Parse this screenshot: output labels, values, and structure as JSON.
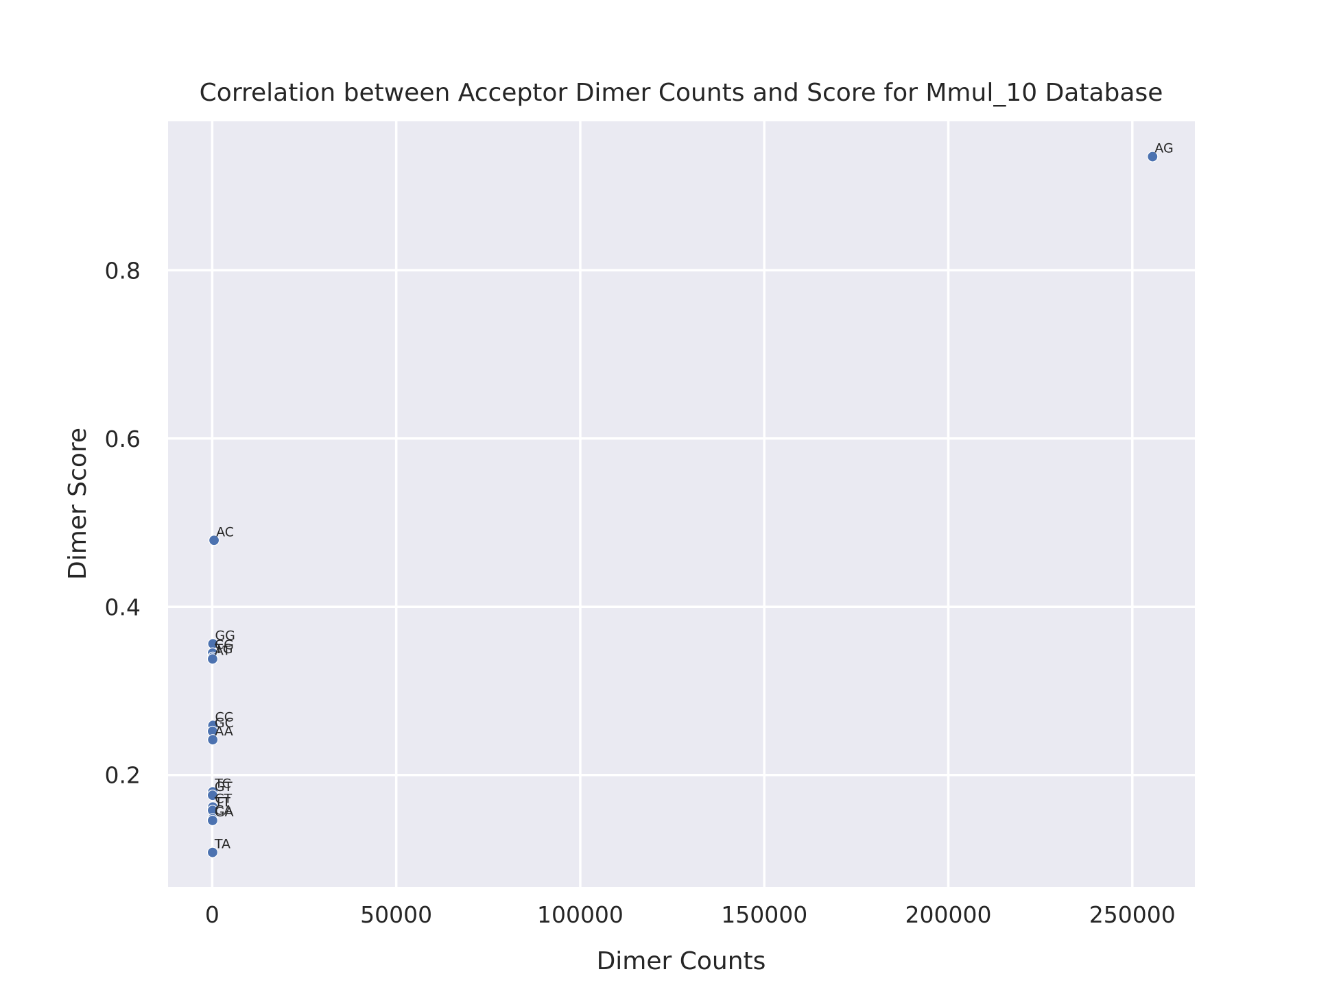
{
  "chart_data": {
    "type": "scatter",
    "title": "Correlation between Acceptor Dimer Counts and Score for Mmul_10 Database",
    "xlabel": "Dimer Counts",
    "ylabel": "Dimer Score",
    "xlim": [
      -12000,
      267000
    ],
    "ylim": [
      0.067,
      0.977
    ],
    "xticks": [
      0,
      50000,
      100000,
      150000,
      200000,
      250000
    ],
    "xtick_labels": [
      "0",
      "50000",
      "100000",
      "150000",
      "200000",
      "250000"
    ],
    "yticks": [
      0.2,
      0.4,
      0.6,
      0.8
    ],
    "ytick_labels": [
      "0.2",
      "0.4",
      "0.6",
      "0.8"
    ],
    "grid": true,
    "point_color": "#4c72b0",
    "background_color": "#eaeaf2",
    "points": [
      {
        "label": "AG",
        "x": 255500,
        "y": 0.935
      },
      {
        "label": "AC",
        "x": 500,
        "y": 0.479
      },
      {
        "label": "GG",
        "x": 200,
        "y": 0.356
      },
      {
        "label": "CG",
        "x": 100,
        "y": 0.345
      },
      {
        "label": "TG",
        "x": 150,
        "y": 0.34
      },
      {
        "label": "AT",
        "x": 100,
        "y": 0.338
      },
      {
        "label": "CC",
        "x": 200,
        "y": 0.259
      },
      {
        "label": "GC",
        "x": 100,
        "y": 0.252
      },
      {
        "label": "AA",
        "x": 150,
        "y": 0.242
      },
      {
        "label": "TC",
        "x": 150,
        "y": 0.18
      },
      {
        "label": "GT",
        "x": 100,
        "y": 0.176
      },
      {
        "label": "CT",
        "x": 150,
        "y": 0.162
      },
      {
        "label": "TT",
        "x": 100,
        "y": 0.158
      },
      {
        "label": "CA",
        "x": 120,
        "y": 0.148
      },
      {
        "label": "GA",
        "x": 100,
        "y": 0.146
      },
      {
        "label": "TA",
        "x": 100,
        "y": 0.108
      }
    ]
  }
}
